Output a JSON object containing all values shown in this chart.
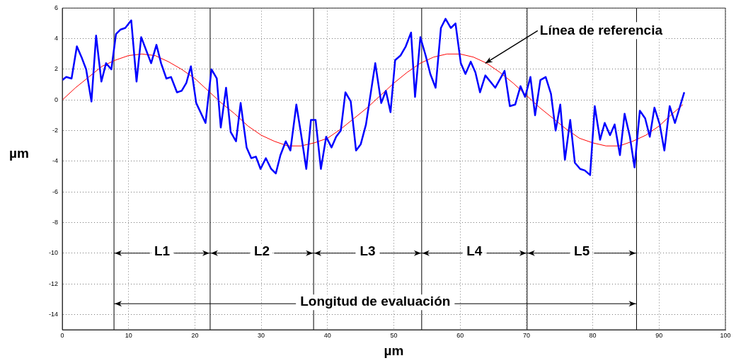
{
  "chart_data": {
    "type": "line",
    "xlabel": "µm",
    "ylabel": "µm",
    "xlim": [
      0,
      100
    ],
    "ylim": [
      -15,
      6
    ],
    "xticks": [
      0,
      10,
      20,
      30,
      40,
      50,
      60,
      70,
      80,
      90,
      100
    ],
    "yticks": [
      -14,
      -12,
      -10,
      -8,
      -6,
      -4,
      -2,
      0,
      2,
      4,
      6
    ],
    "grid": true,
    "legend": false,
    "marker": "none",
    "line_style": "solid",
    "series": [
      {
        "color": "#0000ff",
        "x": [
          0,
          0.6,
          1.4,
          2.2,
          2.9,
          3.6,
          4.4,
          5.1,
          5.9,
          6.6,
          7.4,
          8.1,
          8.8,
          9.5,
          10.4,
          11.2,
          11.9,
          13.4,
          14.2,
          14.9,
          15.7,
          16.4,
          17.3,
          18,
          18.7,
          19.4,
          20.2,
          21.6,
          22.5,
          23.3,
          23.9,
          24.7,
          25.4,
          26.2,
          26.9,
          27.8,
          28.5,
          29.2,
          29.9,
          30.7,
          31.5,
          32.2,
          32.9,
          33.7,
          34.4,
          35.3,
          36,
          36.8,
          37.5,
          38.2,
          39,
          39.8,
          40.6,
          41.3,
          42,
          42.7,
          43.5,
          44.3,
          45,
          45.8,
          47.2,
          48.1,
          48.8,
          49.5,
          50.2,
          51,
          51.8,
          52.6,
          53.2,
          54,
          54.8,
          55.5,
          56.3,
          57.1,
          57.8,
          58.6,
          59.3,
          60.1,
          60.8,
          61.6,
          62.3,
          63,
          63.8,
          65.3,
          66.7,
          67.5,
          68.3,
          69.1,
          69.8,
          70.6,
          71.3,
          72.1,
          72.9,
          73.7,
          74.4,
          75.1,
          75.8,
          76.6,
          77.3,
          78.1,
          78.8,
          79.6,
          80.3,
          81.1,
          81.8,
          82.6,
          83.3,
          84.1,
          84.8,
          85.6,
          86.3,
          87.1,
          87.9,
          88.6,
          89.3,
          90.1,
          90.8,
          91.6,
          92.4,
          93.8
        ],
        "values": [
          1.3,
          1.5,
          1.4,
          3.5,
          2.8,
          2,
          -0.1,
          4.2,
          1.2,
          2.4,
          2,
          4.3,
          4.6,
          4.7,
          5.2,
          1.2,
          4.1,
          2.4,
          3.6,
          2.4,
          1.4,
          1.5,
          0.5,
          0.6,
          1.1,
          2.2,
          -0.2,
          -1.5,
          2,
          1.4,
          -1.8,
          0.8,
          -2.1,
          -2.7,
          -0.2,
          -3.1,
          -3.8,
          -3.7,
          -4.5,
          -3.8,
          -4.5,
          -4.8,
          -3.6,
          -2.7,
          -3.3,
          -0.3,
          -2.2,
          -4.5,
          -1.3,
          -1.3,
          -4.5,
          -2.4,
          -3.1,
          -2.4,
          -2,
          0.5,
          -0.1,
          -3.3,
          -2.9,
          -1.6,
          2.4,
          -0.2,
          0.6,
          -0.8,
          2.6,
          2.9,
          3.5,
          4.4,
          0.2,
          4.1,
          2.9,
          1.7,
          0.8,
          4.7,
          5.3,
          4.7,
          5,
          2.4,
          1.7,
          2.5,
          1.8,
          0.5,
          1.6,
          0.8,
          1.9,
          -0.4,
          -0.3,
          0.9,
          0.2,
          1.5,
          -1,
          1.3,
          1.5,
          0.4,
          -2,
          -0.3,
          -3.9,
          -1.3,
          -4.1,
          -4.5,
          -4.6,
          -4.9,
          -0.4,
          -2.6,
          -1.5,
          -2.3,
          -1.6,
          -3.6,
          -0.9,
          -2.4,
          -4.4,
          -0.7,
          -1.2,
          -2.4,
          -0.5,
          -1.6,
          -3.3,
          -0.4,
          -1.5,
          0.5
        ]
      },
      {
        "color": "#ff0000",
        "x": [
          0,
          2,
          4,
          6,
          8,
          10,
          12,
          14,
          16,
          18,
          20,
          22,
          24,
          26,
          28,
          30,
          32,
          34,
          36,
          38,
          40,
          42,
          44,
          46,
          48,
          50,
          52,
          54,
          56,
          58,
          60,
          62,
          64,
          66,
          68,
          70,
          72,
          74,
          76,
          78,
          80,
          82,
          84,
          86,
          88,
          90,
          92,
          93.6
        ],
        "values": [
          0,
          0.8,
          1.5,
          2.2,
          2.6,
          2.9,
          3,
          2.9,
          2.5,
          2,
          1.4,
          0.6,
          -0.2,
          -0.9,
          -1.7,
          -2.3,
          -2.7,
          -3,
          -3,
          -2.8,
          -2.5,
          -1.9,
          -1.2,
          -0.5,
          0.3,
          1.1,
          1.8,
          2.4,
          2.8,
          3,
          3,
          2.8,
          2.4,
          1.8,
          1.1,
          0.3,
          -0.5,
          -1.2,
          -1.9,
          -2.5,
          -2.8,
          -3,
          -3,
          -2.7,
          -2.3,
          -1.7,
          -0.9,
          -0.3
        ]
      }
    ],
    "ref_lines": [
      {
        "axis": "x",
        "value": 7.8,
        "color": "#000000"
      },
      {
        "axis": "x",
        "value": 22.3,
        "color": "#000000"
      },
      {
        "axis": "x",
        "value": 37.9,
        "color": "#000000"
      },
      {
        "axis": "x",
        "value": 54.2,
        "color": "#000000"
      },
      {
        "axis": "x",
        "value": 70.1,
        "color": "#000000"
      },
      {
        "axis": "x",
        "value": 86.6,
        "color": "#000000"
      }
    ],
    "annotations": [
      {
        "text": "L1",
        "x": 7.8,
        "y": -10
      },
      {
        "text": "L2",
        "x": 22.3,
        "y": -10
      },
      {
        "text": "L3",
        "x": 37.9,
        "y": -10
      },
      {
        "text": "L4",
        "x": 54.2,
        "y": -10
      },
      {
        "text": "L5",
        "x": 70.1,
        "y": -10
      },
      {
        "text": "Longitud de evaluación",
        "x": 7.8,
        "y": -13.3
      },
      {
        "text": "Línea de referencia",
        "x": 63.8,
        "y": 2.4
      }
    ]
  }
}
